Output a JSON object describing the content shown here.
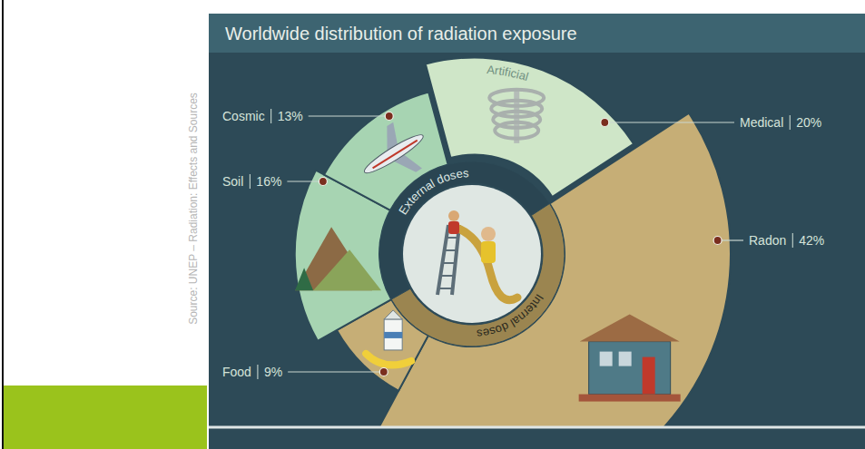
{
  "chart_data": {
    "type": "pie",
    "title": "Worldwide distribution of radiation exposure",
    "source": "Source: UNEP – Radiation: Effects and Sources",
    "categories": [
      "Medical",
      "Radon",
      "Food",
      "Soil",
      "Cosmic"
    ],
    "values": [
      20,
      42,
      9,
      16,
      13
    ],
    "value_labels": [
      "20%",
      "42%",
      "9%",
      "16%",
      "13%"
    ],
    "colors": [
      "#cfe6c8",
      "#c6ae76",
      "#c6ae76",
      "#a7d4b2",
      "#a7d4b2"
    ],
    "data_labels": true,
    "annotations": [
      "Artificial",
      "External doses",
      "Internal doses"
    ]
  }
}
